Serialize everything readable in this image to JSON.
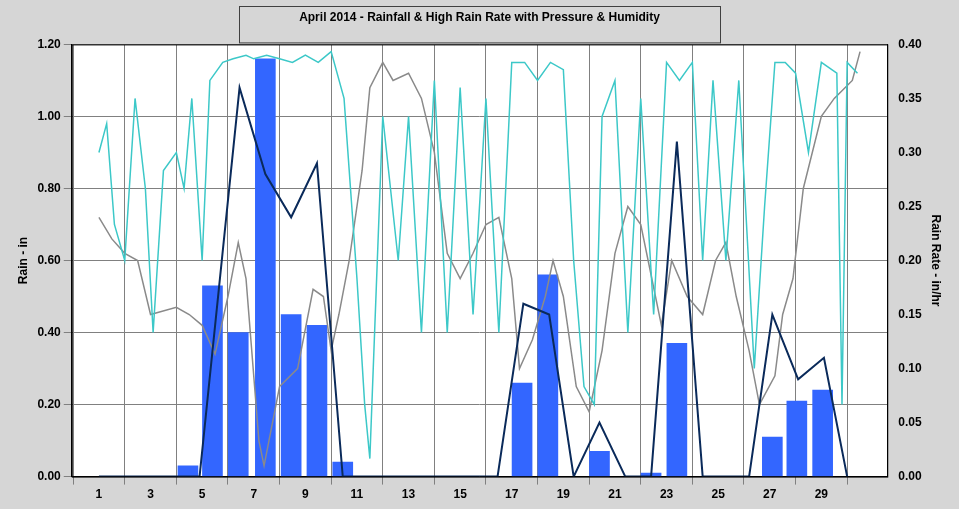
{
  "chart_data": {
    "type": "bar",
    "title": "April 2014 - Rainfall & High Rain Rate with Pressure & Humidity",
    "y_label": "Rain - in",
    "y2_label": "Rain Rate - in/hr",
    "xlim": [
      1,
      30.5
    ],
    "xticks": [
      1,
      3,
      5,
      7,
      9,
      11,
      13,
      15,
      17,
      19,
      21,
      23,
      25,
      27,
      29
    ],
    "ylim": [
      0,
      1.2
    ],
    "yticks": [
      {
        "value": 0,
        "label": "0.00"
      },
      {
        "value": 0.2,
        "label": "0.20"
      },
      {
        "value": 0.4,
        "label": "0.40"
      },
      {
        "value": 0.6,
        "label": "0.60"
      },
      {
        "value": 0.8,
        "label": "0.80"
      },
      {
        "value": 1.0,
        "label": "1.00"
      },
      {
        "value": 1.2,
        "label": "1.20"
      }
    ],
    "y2lim": [
      0,
      0.4
    ],
    "y2ticks": [
      {
        "value": 0,
        "label": "0.00"
      },
      {
        "value": 0.05,
        "label": "0.05"
      },
      {
        "value": 0.1,
        "label": "0.10"
      },
      {
        "value": 0.15,
        "label": "0.15"
      },
      {
        "value": 0.2,
        "label": "0.20"
      },
      {
        "value": 0.25,
        "label": "0.25"
      },
      {
        "value": 0.3,
        "label": "0.30"
      },
      {
        "value": 0.35,
        "label": "0.35"
      },
      {
        "value": 0.4,
        "label": "0.40"
      }
    ],
    "grid": true,
    "series": [
      {
        "name": "Pressure",
        "type": "line",
        "color": "#8a8a8a",
        "x": [
          1,
          1.5,
          2,
          2.5,
          3,
          4,
          4.5,
          5,
          5.5,
          6,
          6.4,
          6.7,
          7.2,
          7.4,
          8,
          8.7,
          9.3,
          9.7,
          10,
          10.3,
          10.7,
          11.2,
          11.5,
          12,
          12.4,
          13,
          13.5,
          14,
          14.5,
          15,
          15.5,
          16,
          16.5,
          17,
          17.3,
          17.8,
          18.3,
          18.6,
          19,
          19.5,
          20,
          20.5,
          21,
          21.5,
          22,
          22.8,
          23.2,
          23.8,
          24.4,
          24.9,
          25.3,
          25.7,
          26.2,
          26.6,
          27.2,
          27.5,
          27.9,
          28.3,
          29,
          29.5,
          30.2,
          30.5
        ],
        "values": [
          0.72,
          0.66,
          0.62,
          0.6,
          0.45,
          0.47,
          0.45,
          0.42,
          0.34,
          0.5,
          0.65,
          0.55,
          0.1,
          0.03,
          0.25,
          0.3,
          0.52,
          0.5,
          0.35,
          0.45,
          0.6,
          0.85,
          1.08,
          1.15,
          1.1,
          1.12,
          1.05,
          0.9,
          0.62,
          0.55,
          0.62,
          0.7,
          0.72,
          0.55,
          0.3,
          0.38,
          0.5,
          0.6,
          0.5,
          0.25,
          0.18,
          0.35,
          0.62,
          0.75,
          0.7,
          0.42,
          0.6,
          0.5,
          0.45,
          0.6,
          0.65,
          0.5,
          0.35,
          0.2,
          0.28,
          0.45,
          0.55,
          0.8,
          1.0,
          1.05,
          1.1,
          1.18
        ]
      },
      {
        "name": "Humidity",
        "type": "line",
        "color": "#3cc8c8",
        "x": [
          1,
          1.3,
          1.6,
          2,
          2.4,
          2.8,
          3.1,
          3.5,
          4,
          4.3,
          4.6,
          5,
          5.3,
          5.8,
          6.2,
          6.7,
          7,
          7.5,
          8,
          8.5,
          9,
          9.5,
          10,
          10.5,
          11,
          11.3,
          11.5,
          12,
          12.3,
          12.6,
          13,
          13.5,
          14,
          14.5,
          15,
          15.5,
          16,
          16.5,
          17,
          17.5,
          18,
          18.5,
          19,
          19.4,
          19.8,
          20.2,
          20.5,
          21,
          21.5,
          22,
          22.5,
          23,
          23.5,
          24,
          24.4,
          24.8,
          25.3,
          25.8,
          26.4,
          26.8,
          27.2,
          27.6,
          28,
          28.5,
          29,
          29.6,
          29.8,
          30,
          30.4
        ],
        "values": [
          0.9,
          0.98,
          0.7,
          0.6,
          1.05,
          0.8,
          0.4,
          0.85,
          0.9,
          0.8,
          1.05,
          0.6,
          1.1,
          1.15,
          1.16,
          1.17,
          1.16,
          1.17,
          1.16,
          1.15,
          1.17,
          1.15,
          1.18,
          1.05,
          0.55,
          0.2,
          0.05,
          1.0,
          0.8,
          0.6,
          1.0,
          0.4,
          1.1,
          0.4,
          1.08,
          0.45,
          1.05,
          0.4,
          1.15,
          1.15,
          1.1,
          1.15,
          1.13,
          0.6,
          0.25,
          0.2,
          1.0,
          1.1,
          0.4,
          1.05,
          0.45,
          1.15,
          1.1,
          1.15,
          0.6,
          1.1,
          0.6,
          1.1,
          0.3,
          0.75,
          1.15,
          1.15,
          1.12,
          0.9,
          1.15,
          1.12,
          0.2,
          1.15,
          1.12
        ]
      },
      {
        "name": "Rainfall",
        "type": "bar",
        "color": "#3366ff",
        "x": [
          4.45,
          5.4,
          6.4,
          7.45,
          8.45,
          9.45,
          10.45,
          17.4,
          18.4,
          20.4,
          22.4,
          23.4,
          27.1,
          28.05,
          29.05
        ],
        "values": [
          0.03,
          0.53,
          0.4,
          1.16,
          0.45,
          0.42,
          0.04,
          0.26,
          0.56,
          0.07,
          0.01,
          0.37,
          0.11,
          0.21,
          0.24
        ]
      },
      {
        "name": "High Rain Rate",
        "type": "line",
        "axis": "y2",
        "color": "#0a2a5a",
        "x": [
          1,
          4.9,
          6.45,
          7.45,
          8.45,
          9.45,
          10.45,
          16.45,
          17.45,
          18.45,
          19.4,
          20.4,
          21.4,
          22.4,
          23.4,
          24.4,
          26.2,
          27.1,
          28.1,
          29.1,
          30
        ],
        "values": [
          0,
          0,
          0.36,
          0.28,
          0.24,
          0.29,
          0,
          0,
          0.16,
          0.15,
          0,
          0.05,
          0,
          0,
          0.31,
          0,
          0,
          0.15,
          0.09,
          0.11,
          0
        ]
      }
    ]
  }
}
